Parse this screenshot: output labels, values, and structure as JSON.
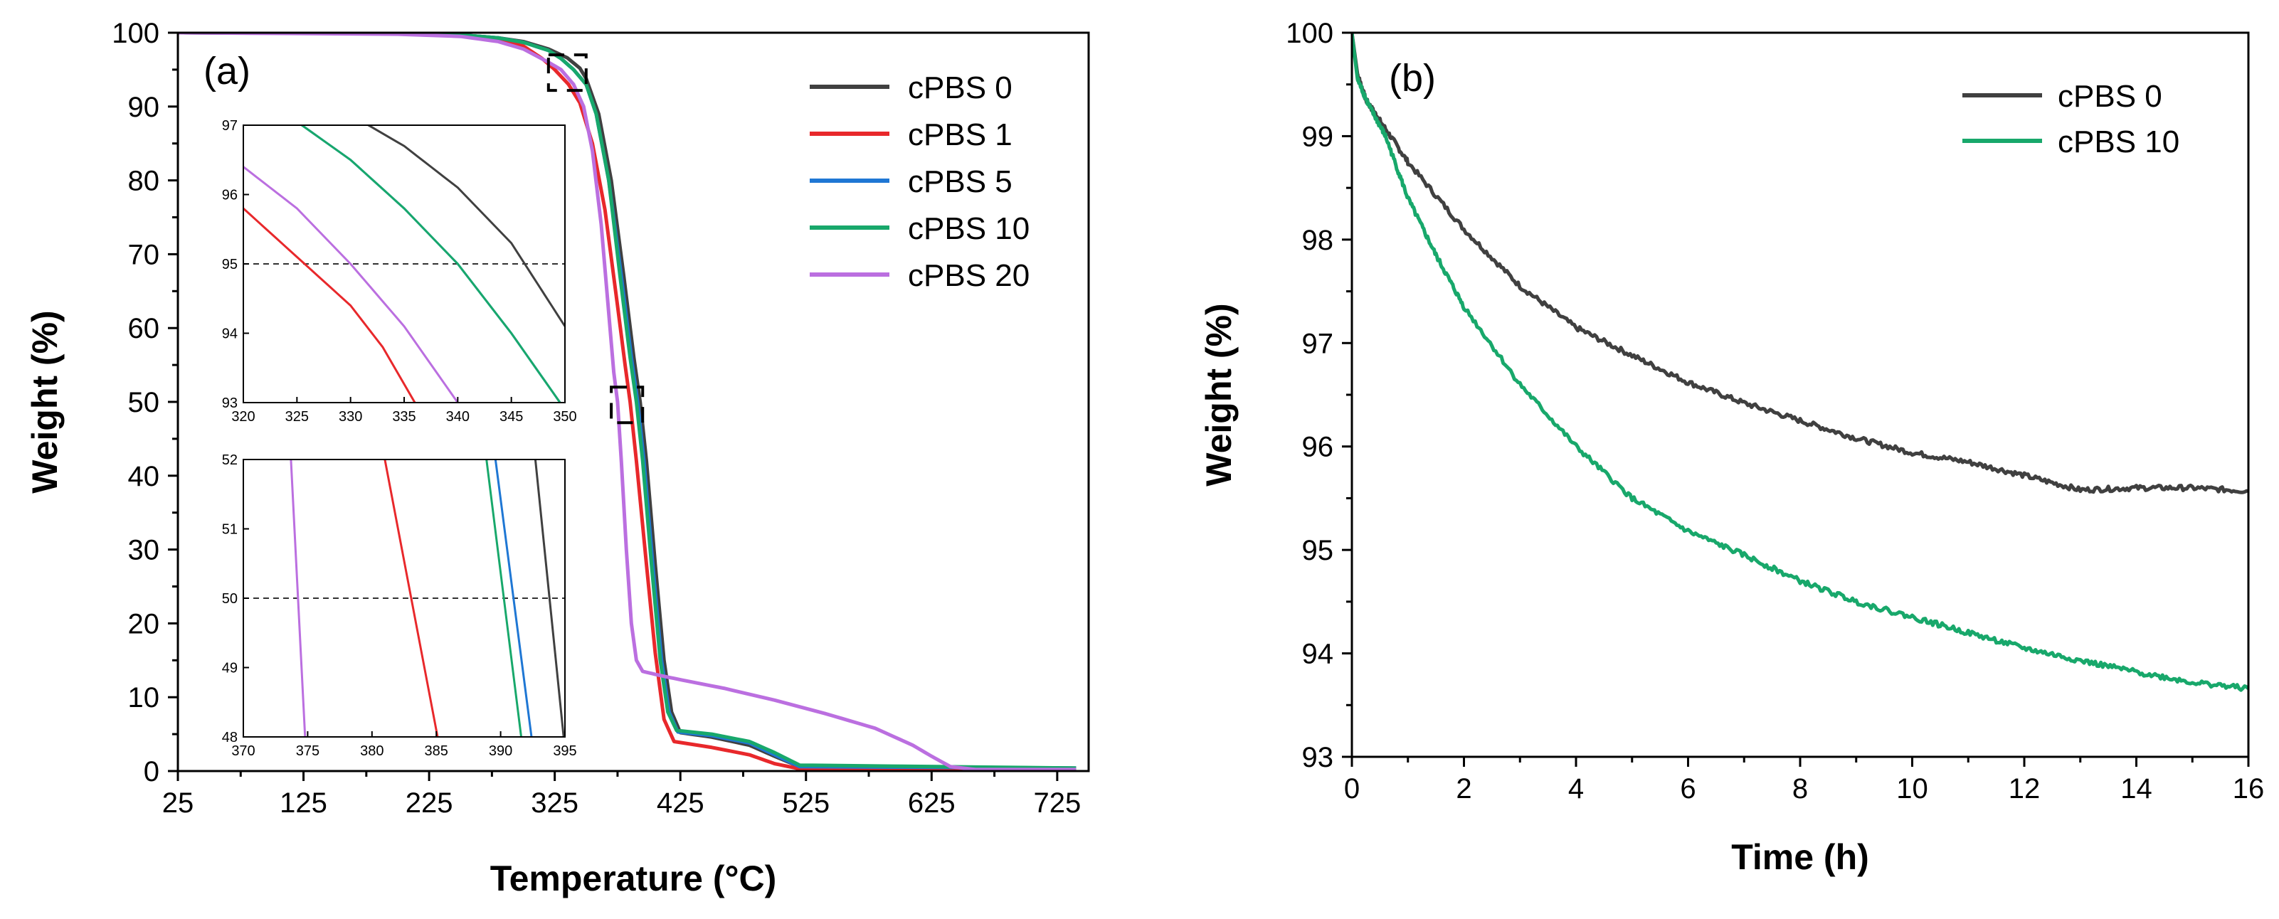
{
  "chart_data": [
    {
      "panel": "(a)",
      "type": "line",
      "xlabel": "Temperature (°C)",
      "ylabel": "Weight (%)",
      "xlim": [
        25,
        750
      ],
      "ylim": [
        0,
        100
      ],
      "xticks": [
        "25",
        "125",
        "225",
        "325",
        "425",
        "525",
        "625",
        "725"
      ],
      "yticks": [
        "0",
        "10",
        "20",
        "30",
        "40",
        "50",
        "60",
        "70",
        "80",
        "90",
        "100"
      ],
      "legend_position": "top-right",
      "series": [
        {
          "name": "cPBS 0",
          "color": "#404040",
          "points": [
            [
              25,
              100
            ],
            [
              200,
              99.9
            ],
            [
              250,
              99.7
            ],
            [
              280,
              99.3
            ],
            [
              300,
              98.8
            ],
            [
              320,
              97.8
            ],
            [
              335,
              96.6
            ],
            [
              345,
              95.2
            ],
            [
              350,
              93.8
            ],
            [
              360,
              89
            ],
            [
              370,
              80
            ],
            [
              380,
              67
            ],
            [
              388,
              56
            ],
            [
              393,
              50
            ],
            [
              398,
              42
            ],
            [
              405,
              28
            ],
            [
              412,
              15
            ],
            [
              418,
              8
            ],
            [
              425,
              5.2
            ],
            [
              450,
              4.6
            ],
            [
              480,
              3.5
            ],
            [
              500,
              2
            ],
            [
              520,
              0.6
            ],
            [
              740,
              0.4
            ]
          ]
        },
        {
          "name": "cPBS 1",
          "color": "#e8282b",
          "points": [
            [
              25,
              100
            ],
            [
              200,
              99.9
            ],
            [
              250,
              99.6
            ],
            [
              280,
              99
            ],
            [
              300,
              98.2
            ],
            [
              315,
              96.5
            ],
            [
              325,
              95
            ],
            [
              336,
              93
            ],
            [
              345,
              90.5
            ],
            [
              355,
              85
            ],
            [
              365,
              76
            ],
            [
              375,
              63
            ],
            [
              381,
              55
            ],
            [
              385,
              50
            ],
            [
              390,
              42
            ],
            [
              398,
              28
            ],
            [
              405,
              16
            ],
            [
              412,
              7
            ],
            [
              420,
              4
            ],
            [
              450,
              3.2
            ],
            [
              480,
              2.2
            ],
            [
              500,
              1
            ],
            [
              520,
              0.3
            ],
            [
              740,
              0.3
            ]
          ]
        },
        {
          "name": "cPBS 5",
          "color": "#1f77d4",
          "points": [
            [
              25,
              100
            ],
            [
              200,
              99.9
            ],
            [
              250,
              99.7
            ],
            [
              280,
              99.3
            ],
            [
              300,
              98.7
            ],
            [
              320,
              97.6
            ],
            [
              330,
              96.5
            ],
            [
              340,
              95
            ],
            [
              350,
              93
            ],
            [
              358,
              89
            ],
            [
              368,
              80
            ],
            [
              378,
              67
            ],
            [
              386,
              56
            ],
            [
              391,
              50
            ],
            [
              396,
              42
            ],
            [
              403,
              28
            ],
            [
              410,
              15
            ],
            [
              416,
              8
            ],
            [
              423,
              5.3
            ],
            [
              450,
              4.8
            ],
            [
              480,
              3.8
            ],
            [
              500,
              2.2
            ],
            [
              520,
              0.6
            ],
            [
              740,
              0.4
            ]
          ]
        },
        {
          "name": "cPBS 10",
          "color": "#18a86b",
          "points": [
            [
              25,
              100
            ],
            [
              200,
              99.9
            ],
            [
              250,
              99.7
            ],
            [
              280,
              99.3
            ],
            [
              300,
              98.7
            ],
            [
              320,
              97.6
            ],
            [
              330,
              96.5
            ],
            [
              340,
              95
            ],
            [
              350,
              93
            ],
            [
              358,
              89
            ],
            [
              368,
              80
            ],
            [
              377,
              67
            ],
            [
              385,
              56
            ],
            [
              390,
              50
            ],
            [
              395,
              42
            ],
            [
              402,
              28
            ],
            [
              409,
              15
            ],
            [
              415,
              8
            ],
            [
              422,
              5.5
            ],
            [
              450,
              5
            ],
            [
              480,
              4
            ],
            [
              500,
              2.5
            ],
            [
              520,
              0.8
            ],
            [
              740,
              0.4
            ]
          ]
        },
        {
          "name": "cPBS 20",
          "color": "#bb6fe0",
          "points": [
            [
              25,
              100
            ],
            [
              200,
              99.8
            ],
            [
              250,
              99.5
            ],
            [
              280,
              98.8
            ],
            [
              300,
              97.8
            ],
            [
              320,
              96
            ],
            [
              330,
              95
            ],
            [
              340,
              93
            ],
            [
              348,
              90
            ],
            [
              355,
              84
            ],
            [
              362,
              74
            ],
            [
              368,
              62
            ],
            [
              372,
              54
            ],
            [
              375,
              50
            ],
            [
              378,
              42
            ],
            [
              382,
              30
            ],
            [
              386,
              20
            ],
            [
              390,
              15
            ],
            [
              395,
              13.5
            ],
            [
              410,
              12.9
            ],
            [
              430,
              12.2
            ],
            [
              460,
              11.2
            ],
            [
              500,
              9.6
            ],
            [
              540,
              7.8
            ],
            [
              580,
              5.8
            ],
            [
              610,
              3.5
            ],
            [
              625,
              2
            ],
            [
              640,
              0.6
            ],
            [
              660,
              0.2
            ],
            [
              740,
              0.2
            ]
          ]
        }
      ],
      "insets": [
        {
          "name": "inset-upper",
          "xlim": [
            320,
            350
          ],
          "ylim": [
            93,
            97
          ],
          "xticks": [
            "320",
            "325",
            "330",
            "335",
            "340",
            "345",
            "350"
          ],
          "yticks": [
            "93",
            "94",
            "95",
            "96",
            "97"
          ],
          "reference_line_y": 95
        },
        {
          "name": "inset-lower",
          "xlim": [
            370,
            395
          ],
          "ylim": [
            48,
            52
          ],
          "xticks": [
            "370",
            "375",
            "380",
            "385",
            "390",
            "395"
          ],
          "yticks": [
            "48",
            "49",
            "50",
            "51",
            "52"
          ],
          "reference_line_y": 50
        }
      ],
      "zoom_regions": [
        {
          "xlim": [
            320,
            350
          ],
          "ylim": [
            93,
            97
          ]
        },
        {
          "xlim": [
            370,
            395
          ],
          "ylim": [
            48,
            52
          ]
        }
      ]
    },
    {
      "panel": "(b)",
      "type": "line",
      "xlabel": "Time (h)",
      "ylabel": "Weight (%)",
      "xlim": [
        0,
        16
      ],
      "ylim": [
        93,
        100
      ],
      "xticks": [
        "0",
        "2",
        "4",
        "6",
        "8",
        "10",
        "12",
        "14",
        "16"
      ],
      "yticks": [
        "93",
        "94",
        "95",
        "96",
        "97",
        "98",
        "99",
        "100"
      ],
      "legend_position": "top-right",
      "series": [
        {
          "name": "cPBS 0",
          "color": "#404040",
          "points": [
            [
              0,
              100
            ],
            [
              0.1,
              99.6
            ],
            [
              0.25,
              99.35
            ],
            [
              0.5,
              99.15
            ],
            [
              1,
              98.75
            ],
            [
              2,
              98.1
            ],
            [
              3,
              97.55
            ],
            [
              4,
              97.15
            ],
            [
              5,
              96.88
            ],
            [
              6,
              96.62
            ],
            [
              7,
              96.42
            ],
            [
              8,
              96.25
            ],
            [
              9,
              96.08
            ],
            [
              10,
              95.94
            ],
            [
              11,
              95.85
            ],
            [
              12,
              95.72
            ],
            [
              13,
              95.58
            ],
            [
              14,
              95.6
            ],
            [
              15,
              95.6
            ],
            [
              16,
              95.57
            ]
          ]
        },
        {
          "name": "cPBS 10",
          "color": "#18a86b",
          "points": [
            [
              0,
              100
            ],
            [
              0.1,
              99.55
            ],
            [
              0.3,
              99.3
            ],
            [
              0.6,
              99.0
            ],
            [
              1,
              98.4
            ],
            [
              1.5,
              97.85
            ],
            [
              2,
              97.35
            ],
            [
              3,
              96.6
            ],
            [
              4,
              96.0
            ],
            [
              5,
              95.5
            ],
            [
              6,
              95.18
            ],
            [
              7,
              94.95
            ],
            [
              8,
              94.7
            ],
            [
              9,
              94.5
            ],
            [
              10,
              94.35
            ],
            [
              11,
              94.2
            ],
            [
              12,
              94.05
            ],
            [
              13,
              93.93
            ],
            [
              14,
              93.82
            ],
            [
              15,
              93.72
            ],
            [
              16,
              93.66
            ]
          ]
        }
      ]
    }
  ]
}
